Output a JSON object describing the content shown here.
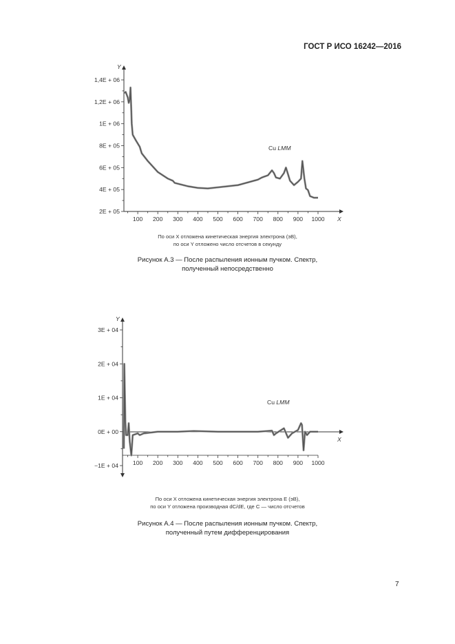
{
  "header": {
    "standard": "ГОСТ Р ИСО 16242—2016"
  },
  "page_number": "7",
  "figures": [
    {
      "note_line1": "По оси X отложена кинетическая энергия электрона (эВ),",
      "note_line2": "по оси Y отложено число отсчетов в секунду",
      "caption_line1": "Рисунок А.3 — После распыления ионным пучком. Спектр,",
      "caption_line2": "полученный непосредственно"
    },
    {
      "note_line1": "По оси X отложена кинетическая энергия электрона E (эВ),",
      "note_line2": "по оси Y отложена производная dC/dE, где C — число отсчетов",
      "caption_line1": "Рисунок А.4 — После распыления ионным пучком. Спектр,",
      "caption_line2": "полученный путем дифференцирования"
    }
  ],
  "chart_data": [
    {
      "type": "line",
      "xlabel": "X",
      "ylabel": "Y",
      "annotation": "Cu LMM",
      "xticks": [
        "100",
        "200",
        "300",
        "400",
        "500",
        "600",
        "700",
        "800",
        "900",
        "1000"
      ],
      "yticks": [
        "2E + 05",
        "4E + 05",
        "6E + 05",
        "8E + 05",
        "1E + 06",
        "1,2E + 06",
        "1,4E + 06"
      ],
      "ylim": [
        200000,
        1400000
      ],
      "xlim": [
        31,
        1000
      ],
      "grid": false,
      "line_color": "#555555",
      "x": [
        33,
        40,
        50,
        55,
        60,
        64,
        70,
        75,
        90,
        110,
        120,
        150,
        200,
        250,
        275,
        285,
        350,
        400,
        450,
        500,
        600,
        700,
        720,
        750,
        770,
        780,
        790,
        810,
        830,
        840,
        850,
        860,
        880,
        900,
        915,
        922,
        932,
        940,
        950,
        960,
        980,
        1000
      ],
      "y": [
        1280000,
        1290000,
        1240000,
        1190000,
        1220000,
        1330000,
        1000000,
        900000,
        850000,
        790000,
        730000,
        660000,
        560000,
        500000,
        480000,
        460000,
        430000,
        415000,
        410000,
        420000,
        440000,
        490000,
        510000,
        530000,
        575000,
        550000,
        510000,
        500000,
        550000,
        600000,
        540000,
        480000,
        440000,
        470000,
        500000,
        660000,
        500000,
        410000,
        395000,
        340000,
        325000,
        325000
      ]
    },
    {
      "type": "line",
      "xlabel": "X",
      "ylabel": "Y",
      "annotation": "Cu LMM",
      "xticks": [
        "100",
        "200",
        "300",
        "400",
        "500",
        "600",
        "700",
        "800",
        "900",
        "1000"
      ],
      "yticks": [
        "−1E + 04",
        "0E + 00",
        "1E + 04",
        "2E + 04",
        "3E + 04"
      ],
      "ylim": [
        -10000,
        30000
      ],
      "xlim": [
        31,
        1000
      ],
      "grid": false,
      "line_color": "#555555",
      "x": [
        31,
        33,
        38,
        42,
        50,
        55,
        60,
        68,
        75,
        100,
        110,
        130,
        200,
        300,
        380,
        500,
        600,
        700,
        770,
        780,
        790,
        830,
        850,
        870,
        900,
        915,
        920,
        928,
        935,
        945,
        960,
        1000
      ],
      "y": [
        -5000,
        20000,
        3000,
        -1000,
        -1000,
        2500,
        -3000,
        -7000,
        -1000,
        -500,
        -1000,
        -500,
        0,
        0,
        200,
        0,
        0,
        0,
        300,
        -1000,
        -500,
        1000,
        -1800,
        -500,
        500,
        2500,
        2000,
        -5500,
        0,
        -1000,
        0,
        0
      ]
    }
  ]
}
